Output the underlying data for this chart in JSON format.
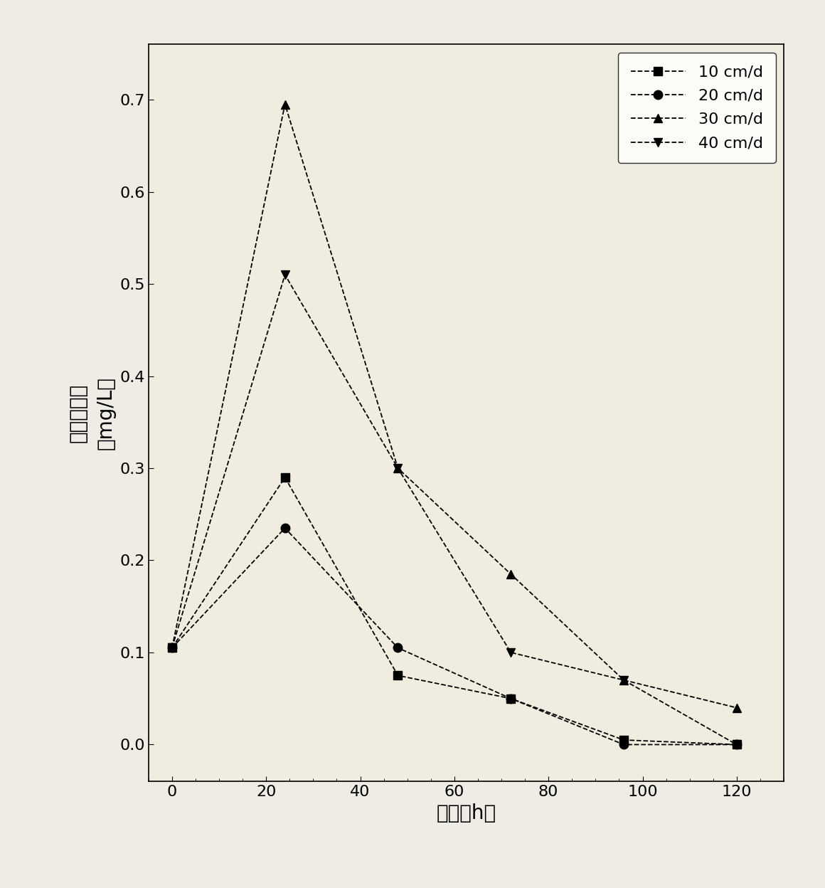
{
  "x_values": [
    0,
    24,
    48,
    72,
    96,
    120
  ],
  "series": [
    {
      "label": "10 cm/d",
      "y": [
        0.105,
        0.29,
        0.075,
        0.05,
        0.005,
        0.0
      ],
      "marker": "s",
      "color": "#000000",
      "linestyle": "--"
    },
    {
      "label": "20 cm/d",
      "y": [
        0.105,
        0.235,
        0.105,
        0.05,
        0.0,
        0.0
      ],
      "marker": "o",
      "color": "#000000",
      "linestyle": "--"
    },
    {
      "label": "30 cm/d",
      "y": [
        0.105,
        0.695,
        0.3,
        0.185,
        0.07,
        0.04
      ],
      "marker": "^",
      "color": "#000000",
      "linestyle": "--"
    },
    {
      "label": "40 cm/d",
      "y": [
        0.105,
        0.51,
        0.3,
        0.1,
        0.07,
        0.0
      ],
      "marker": "v",
      "color": "#000000",
      "linestyle": "--"
    }
  ],
  "xlabel": "时间（h）",
  "ylabel_line1": "亚硒酸盐氮",
  "ylabel_line2": "（mg/L）",
  "xlim": [
    -5,
    130
  ],
  "ylim": [
    -0.04,
    0.76
  ],
  "xticks": [
    0,
    20,
    40,
    60,
    80,
    100,
    120
  ],
  "yticks": [
    0.0,
    0.1,
    0.2,
    0.3,
    0.4,
    0.5,
    0.6,
    0.7
  ],
  "background_color": "#eeece4",
  "plot_background": "#f0ede0",
  "figsize": [
    11.6,
    12.48
  ],
  "dpi": 100,
  "marker_size": 9,
  "linewidth": 1.3,
  "legend_fontsize": 16,
  "axis_label_fontsize": 20,
  "tick_fontsize": 16
}
